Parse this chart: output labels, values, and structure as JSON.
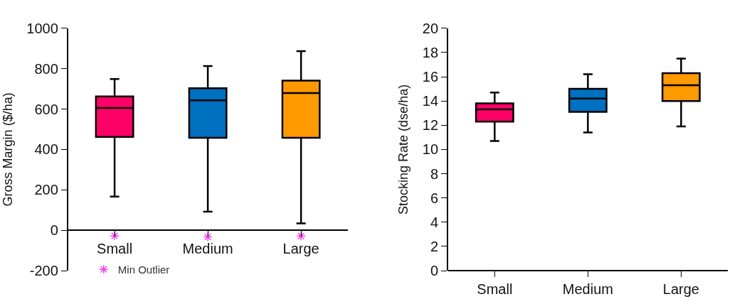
{
  "chart_data": [
    {
      "type": "box",
      "ylabel": "Gross Margin ($/ha)",
      "categories": [
        "Small",
        "Medium",
        "Large"
      ],
      "ylim": [
        -200,
        1000
      ],
      "yticks": [
        -200,
        0,
        200,
        400,
        600,
        800,
        1000
      ],
      "grid": false,
      "legend": "bottom left",
      "series": [
        {
          "colors": [
            "#ff0066",
            "#0070c0",
            "#ff9900"
          ],
          "boxes": [
            {
              "low": 167,
              "q1": 462,
              "median": 605,
              "q3": 662,
              "high": 749
            },
            {
              "low": 92,
              "q1": 458,
              "median": 643,
              "q3": 703,
              "high": 813
            },
            {
              "low": 34,
              "q1": 458,
              "median": 679,
              "q3": 741,
              "high": 887
            }
          ]
        },
        {
          "type": "scatter",
          "name": "Min Outlier",
          "color": "#ee44ee",
          "marker": "cross",
          "x": [
            "Small",
            "Medium",
            "Large"
          ],
          "values": [
            -28,
            -33,
            -29
          ]
        }
      ]
    },
    {
      "type": "box",
      "ylabel": "Stocking Rate (dse/ha)",
      "categories": [
        "Small",
        "Medium",
        "Large"
      ],
      "ylim": [
        0,
        20
      ],
      "yticks": [
        0,
        2,
        4,
        6,
        8,
        10,
        12,
        14,
        16,
        18,
        20
      ],
      "grid": false,
      "series": [
        {
          "colors": [
            "#ff0066",
            "#0070c0",
            "#ff9900"
          ],
          "boxes": [
            {
              "low": 10.7,
              "q1": 12.3,
              "median": 13.3,
              "q3": 13.8,
              "high": 14.7
            },
            {
              "low": 11.4,
              "q1": 13.1,
              "median": 14.2,
              "q3": 15.0,
              "high": 16.2
            },
            {
              "low": 11.9,
              "q1": 14.0,
              "median": 15.3,
              "q3": 16.3,
              "high": 17.5
            }
          ]
        }
      ]
    }
  ]
}
